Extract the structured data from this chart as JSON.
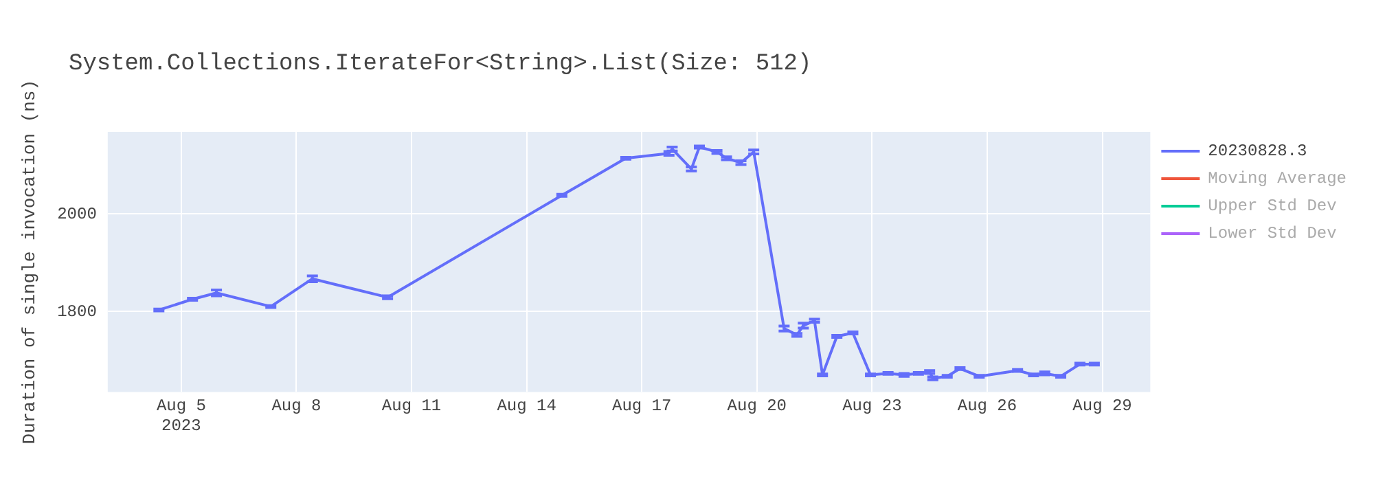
{
  "chart_data": {
    "type": "line",
    "title": "System.Collections.IterateFor<String>.List(Size: 512)",
    "ylabel": "Duration of single invocation (ns)",
    "xlim": [
      "2023-08-03T02:00",
      "2023-08-30T06:00"
    ],
    "xticks": [
      {
        "value": "2023-08-05T00:00",
        "label": "Aug 5\n2023"
      },
      {
        "value": "2023-08-08T00:00",
        "label": "Aug 8"
      },
      {
        "value": "2023-08-11T00:00",
        "label": "Aug 11"
      },
      {
        "value": "2023-08-14T00:00",
        "label": "Aug 14"
      },
      {
        "value": "2023-08-17T00:00",
        "label": "Aug 17"
      },
      {
        "value": "2023-08-20T00:00",
        "label": "Aug 20"
      },
      {
        "value": "2023-08-23T00:00",
        "label": "Aug 23"
      },
      {
        "value": "2023-08-26T00:00",
        "label": "Aug 26"
      },
      {
        "value": "2023-08-29T00:00",
        "label": "Aug 29"
      }
    ],
    "ylim": [
      1635,
      2168
    ],
    "yticks": [
      1800,
      2000
    ],
    "grid": true,
    "legend": "right",
    "marker": "none",
    "line_style": "solid",
    "x": [
      "2023-08-04T10:00",
      "2023-08-05T07:00",
      "2023-08-05T22:00",
      "2023-08-07T08:00",
      "2023-08-08T10:00",
      "2023-08-10T09:00",
      "2023-08-14T22:00",
      "2023-08-16T14:00",
      "2023-08-17T17:00",
      "2023-08-17T19:00",
      "2023-08-18T07:00",
      "2023-08-18T12:00",
      "2023-08-18T23:00",
      "2023-08-19T05:00",
      "2023-08-19T14:00",
      "2023-08-19T22:00",
      "2023-08-20T17:00",
      "2023-08-21T01:00",
      "2023-08-21T05:00",
      "2023-08-21T12:00",
      "2023-08-21T17:00",
      "2023-08-22T02:00",
      "2023-08-22T12:00",
      "2023-08-22T23:00",
      "2023-08-23T10:00",
      "2023-08-23T20:00",
      "2023-08-24T05:00",
      "2023-08-24T12:00",
      "2023-08-24T14:00",
      "2023-08-24T23:00",
      "2023-08-25T07:00",
      "2023-08-25T19:00",
      "2023-08-26T19:00",
      "2023-08-27T05:00",
      "2023-08-27T12:00",
      "2023-08-27T22:00",
      "2023-08-28T10:00",
      "2023-08-28T19:00"
    ],
    "series": [
      {
        "name": "20230828.3",
        "color": "#636efa",
        "values": [
          1803,
          1825,
          1838,
          1810,
          1867,
          1829,
          2038,
          2114,
          2124,
          2133,
          2092,
          2137,
          2127,
          2114,
          2105,
          2127,
          1765,
          1752,
          1771,
          1781,
          1670,
          1749,
          1756,
          1670,
          1673,
          1670,
          1673,
          1676,
          1663,
          1667,
          1683,
          1667,
          1679,
          1670,
          1673,
          1667,
          1692,
          1692
        ],
        "errors": [
          2,
          2,
          6,
          2,
          6,
          3,
          2,
          2,
          4,
          4,
          4,
          2,
          3,
          3,
          4,
          4,
          5,
          3,
          5,
          3,
          2,
          2,
          2,
          2,
          2,
          3,
          2,
          3,
          3,
          2,
          2,
          2,
          2,
          2,
          3,
          2,
          2,
          2
        ]
      },
      {
        "name": "Moving Average",
        "color": "#ef553b",
        "values": [
          null,
          null,
          null,
          null,
          null,
          null,
          null,
          null,
          null,
          null,
          null,
          null,
          null,
          null,
          null,
          null,
          null,
          null,
          null,
          null,
          null,
          null,
          null,
          null,
          null,
          null,
          null,
          null,
          null,
          null,
          null,
          null,
          null,
          null,
          null,
          null,
          null,
          null
        ]
      },
      {
        "name": "Upper Std Dev",
        "color": "#00cc96",
        "values": [
          null,
          null,
          null,
          null,
          null,
          null,
          null,
          null,
          null,
          null,
          null,
          null,
          null,
          null,
          null,
          null,
          null,
          null,
          null,
          null,
          null,
          null,
          null,
          null,
          null,
          null,
          null,
          null,
          null,
          null,
          null,
          null,
          null,
          null,
          null,
          null,
          null,
          null
        ]
      },
      {
        "name": "Lower Std Dev",
        "color": "#ab63fa",
        "values": [
          null,
          null,
          null,
          null,
          null,
          null,
          null,
          null,
          null,
          null,
          null,
          null,
          null,
          null,
          null,
          null,
          null,
          null,
          null,
          null,
          null,
          null,
          null,
          null,
          null,
          null,
          null,
          null,
          null,
          null,
          null,
          null,
          null,
          null,
          null,
          null,
          null,
          null
        ]
      }
    ]
  }
}
